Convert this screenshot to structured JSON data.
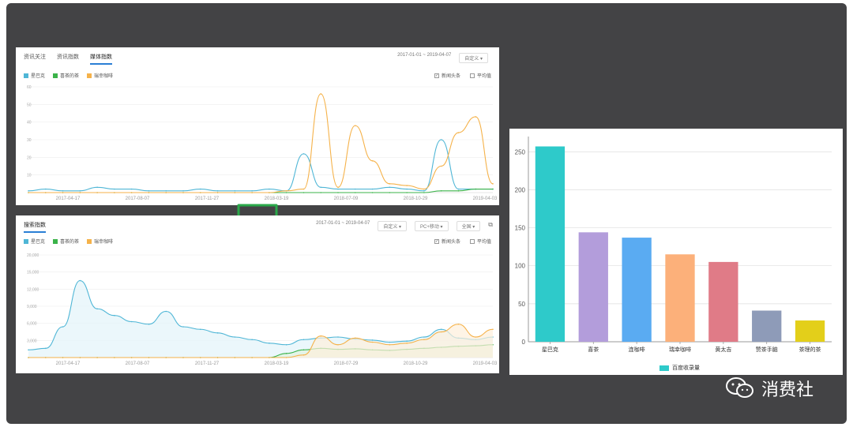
{
  "colors": {
    "xingbake": "#4fb6d6",
    "xicha": "#3bb34a",
    "ruixing": "#f5b24a",
    "blue_fill": "#e3f3fa",
    "green_fill": "#dff2df",
    "orange_fill": "#fdf0dc",
    "bar_teal": "#2ecaca",
    "legend_swatch": "#2ecaca"
  },
  "media_panel": {
    "tabs": [
      "资讯关注",
      "资讯指数",
      "媒体指数"
    ],
    "date_range": "2017-01-01 ~ 2019-04-07",
    "custom_dropdown": "自定义",
    "legend": [
      "星巴克",
      "喜茶的茶",
      "瑞幸咖啡"
    ],
    "options": [
      "新闻头条",
      "平均值"
    ],
    "x_ticks": [
      "2017-04-17",
      "2017-08-07",
      "2017-11-27",
      "2018-03-19",
      "2018-07-09",
      "2018-10-29",
      "2019-04-03"
    ],
    "y_ticks": [
      "60",
      "50",
      "40",
      "30",
      "20",
      "10"
    ]
  },
  "search_panel": {
    "title": "搜索指数",
    "date_range": "2017-01-01 ~ 2019-04-07",
    "custom_dropdown": "自定义",
    "device_dropdown": "PC+移动",
    "region_dropdown": "全国",
    "legend": [
      "星巴克",
      "喜茶的茶",
      "瑞幸咖啡"
    ],
    "options": [
      "新闻头条",
      "平均值"
    ],
    "x_ticks": [
      "2017-04-17",
      "2017-08-07",
      "2017-11-27",
      "2018-03-19",
      "2018-07-29",
      "2018-10-29",
      "2019-04-03"
    ],
    "y_ticks": [
      "20,000",
      "15,000",
      "12,000",
      "9,000",
      "6,000",
      "3,000"
    ]
  },
  "chart_data": [
    {
      "type": "line",
      "title": "媒体指数",
      "x": [
        "2017-01",
        "2017-02",
        "2017-03",
        "2017-04",
        "2017-05",
        "2017-06",
        "2017-07",
        "2017-08",
        "2017-09",
        "2017-10",
        "2017-11",
        "2017-12",
        "2018-01",
        "2018-02",
        "2018-03",
        "2018-04",
        "2018-05",
        "2018-06",
        "2018-07",
        "2018-08",
        "2018-09",
        "2018-10",
        "2018-11",
        "2018-12",
        "2019-01",
        "2019-02",
        "2019-03",
        "2019-04"
      ],
      "series": [
        {
          "name": "星巴克",
          "values": [
            1,
            2,
            1,
            1,
            3,
            2,
            2,
            1,
            1,
            1,
            2,
            1,
            1,
            1,
            2,
            1,
            22,
            3,
            2,
            2,
            2,
            3,
            2,
            1,
            30,
            2,
            2,
            2
          ]
        },
        {
          "name": "喜茶的茶",
          "values": [
            0,
            0,
            0,
            0,
            0,
            0,
            0,
            0,
            0,
            0,
            0,
            0,
            0,
            0,
            0,
            0,
            0,
            0,
            0,
            0,
            0,
            0,
            0,
            0,
            1,
            1,
            2,
            2
          ]
        },
        {
          "name": "瑞幸咖啡",
          "values": [
            0,
            0,
            0,
            0,
            0,
            0,
            0,
            0,
            0,
            0,
            0,
            0,
            0,
            0,
            0,
            1,
            2,
            56,
            3,
            38,
            18,
            5,
            4,
            2,
            15,
            34,
            43,
            5
          ]
        }
      ],
      "ylim": [
        0,
        60
      ],
      "grid": true,
      "legend_position": "top-left"
    },
    {
      "type": "area",
      "title": "搜索指数",
      "x": [
        "2017-01",
        "2017-02",
        "2017-03",
        "2017-04",
        "2017-05",
        "2017-06",
        "2017-07",
        "2017-08",
        "2017-09",
        "2017-10",
        "2017-11",
        "2017-12",
        "2018-01",
        "2018-02",
        "2018-03",
        "2018-04",
        "2018-05",
        "2018-06",
        "2018-07",
        "2018-08",
        "2018-09",
        "2018-10",
        "2018-11",
        "2018-12",
        "2019-01",
        "2019-02",
        "2019-03",
        "2019-04"
      ],
      "series": [
        {
          "name": "星巴克",
          "values": [
            1500,
            1800,
            6000,
            15000,
            9500,
            8200,
            7000,
            6500,
            9000,
            6000,
            5500,
            4800,
            4000,
            3500,
            2800,
            2500,
            3500,
            3800,
            4000,
            3600,
            3400,
            3000,
            3200,
            4000,
            5500,
            3800,
            3500,
            4000
          ]
        },
        {
          "name": "喜茶的茶",
          "values": [
            0,
            0,
            0,
            0,
            0,
            0,
            0,
            0,
            0,
            0,
            0,
            0,
            0,
            0,
            0,
            800,
            1500,
            1800,
            1600,
            1700,
            1500,
            1400,
            1600,
            1800,
            2000,
            2200,
            2300,
            2500
          ]
        },
        {
          "name": "瑞幸咖啡",
          "values": [
            0,
            0,
            0,
            0,
            0,
            0,
            0,
            0,
            0,
            0,
            0,
            0,
            0,
            0,
            0,
            0,
            500,
            4200,
            2500,
            3800,
            3000,
            2500,
            2800,
            3500,
            5000,
            6500,
            4000,
            5500
          ]
        }
      ],
      "ylim": [
        0,
        20000
      ],
      "grid": true,
      "legend_position": "top-left"
    },
    {
      "type": "bar",
      "categories": [
        "星巴克",
        "喜茶",
        "连咖啡",
        "瑞幸咖啡",
        "黄太吉",
        "赞茶手脑",
        "茶理的茶"
      ],
      "series": [
        {
          "name": "百度收录量",
          "values": [
            257,
            144,
            137,
            115,
            105,
            41,
            28
          ]
        }
      ],
      "colors": [
        "#2ecaca",
        "#b39ddb",
        "#5aabf2",
        "#fcb07a",
        "#e07b87",
        "#8e9bb8",
        "#e3cf1a"
      ],
      "ylim": [
        0,
        270
      ],
      "y_ticks": [
        0,
        50,
        100,
        150,
        200,
        250
      ],
      "grid": true,
      "legend_position": "bottom"
    }
  ],
  "watermark": {
    "text": "消费社"
  }
}
